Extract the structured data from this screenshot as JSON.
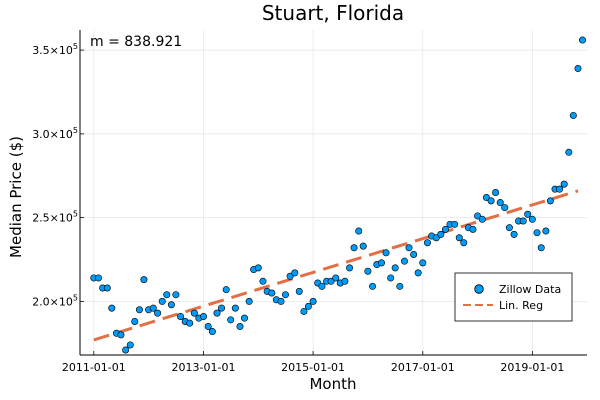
{
  "chart_data": {
    "type": "scatter",
    "title": "Stuart, Florida",
    "xlabel": "Month",
    "ylabel": "Median Price ($)",
    "annotation": "m = 838.921",
    "x_range": [
      "2010-10-01",
      "2019-12-31"
    ],
    "y_range": [
      168000,
      362000
    ],
    "x_ticks": [
      "2011-01-01",
      "2013-01-01",
      "2015-01-01",
      "2017-01-01",
      "2019-01-01"
    ],
    "y_ticks": [
      {
        "value": 200000,
        "mantissa": "2.0×10",
        "exp": "5"
      },
      {
        "value": 250000,
        "mantissa": "2.5×10",
        "exp": "5"
      },
      {
        "value": 300000,
        "mantissa": "3.0×10",
        "exp": "5"
      },
      {
        "value": 350000,
        "mantissa": "3.5×10",
        "exp": "5"
      }
    ],
    "grid": true,
    "legend_position": "bottom-right",
    "series": [
      {
        "name": "Zillow Data",
        "kind": "scatter",
        "color": "#009af9",
        "points": [
          [
            "2011-01-01",
            214000
          ],
          [
            "2011-02-01",
            214000
          ],
          [
            "2011-03-01",
            208000
          ],
          [
            "2011-04-01",
            208000
          ],
          [
            "2011-05-01",
            196000
          ],
          [
            "2011-06-01",
            181000
          ],
          [
            "2011-07-01",
            180000
          ],
          [
            "2011-08-01",
            171000
          ],
          [
            "2011-09-01",
            174000
          ],
          [
            "2011-10-01",
            188000
          ],
          [
            "2011-11-01",
            195000
          ],
          [
            "2011-12-01",
            213000
          ],
          [
            "2012-01-01",
            195000
          ],
          [
            "2012-02-01",
            196000
          ],
          [
            "2012-03-01",
            193000
          ],
          [
            "2012-04-01",
            200000
          ],
          [
            "2012-05-01",
            204000
          ],
          [
            "2012-06-01",
            198000
          ],
          [
            "2012-07-01",
            204000
          ],
          [
            "2012-08-01",
            191000
          ],
          [
            "2012-09-01",
            188000
          ],
          [
            "2012-10-01",
            187000
          ],
          [
            "2012-11-01",
            193000
          ],
          [
            "2012-12-01",
            190000
          ],
          [
            "2013-01-01",
            191000
          ],
          [
            "2013-02-01",
            185000
          ],
          [
            "2013-03-01",
            182000
          ],
          [
            "2013-04-01",
            193000
          ],
          [
            "2013-05-01",
            196000
          ],
          [
            "2013-06-01",
            207000
          ],
          [
            "2013-07-01",
            189000
          ],
          [
            "2013-08-01",
            196000
          ],
          [
            "2013-09-01",
            185000
          ],
          [
            "2013-10-01",
            190000
          ],
          [
            "2013-11-01",
            200000
          ],
          [
            "2013-12-01",
            219000
          ],
          [
            "2014-01-01",
            220000
          ],
          [
            "2014-02-01",
            212000
          ],
          [
            "2014-03-01",
            206000
          ],
          [
            "2014-04-01",
            205000
          ],
          [
            "2014-05-01",
            201000
          ],
          [
            "2014-06-01",
            200000
          ],
          [
            "2014-07-01",
            204000
          ],
          [
            "2014-08-01",
            215000
          ],
          [
            "2014-09-01",
            217000
          ],
          [
            "2014-10-01",
            206000
          ],
          [
            "2014-11-01",
            194000
          ],
          [
            "2014-12-01",
            197000
          ],
          [
            "2015-01-01",
            200000
          ],
          [
            "2015-02-01",
            211000
          ],
          [
            "2015-03-01",
            209000
          ],
          [
            "2015-04-01",
            212000
          ],
          [
            "2015-05-01",
            212000
          ],
          [
            "2015-06-01",
            214000
          ],
          [
            "2015-07-01",
            211000
          ],
          [
            "2015-08-01",
            212000
          ],
          [
            "2015-09-01",
            220000
          ],
          [
            "2015-10-01",
            232000
          ],
          [
            "2015-11-01",
            242000
          ],
          [
            "2015-12-01",
            233000
          ],
          [
            "2016-01-01",
            218000
          ],
          [
            "2016-02-01",
            209000
          ],
          [
            "2016-03-01",
            222000
          ],
          [
            "2016-04-01",
            223000
          ],
          [
            "2016-05-01",
            229000
          ],
          [
            "2016-06-01",
            214000
          ],
          [
            "2016-07-01",
            220000
          ],
          [
            "2016-08-01",
            209000
          ],
          [
            "2016-09-01",
            224000
          ],
          [
            "2016-10-01",
            232000
          ],
          [
            "2016-11-01",
            228000
          ],
          [
            "2016-12-01",
            217000
          ],
          [
            "2017-01-01",
            223000
          ],
          [
            "2017-02-01",
            235000
          ],
          [
            "2017-03-01",
            239000
          ],
          [
            "2017-04-01",
            238000
          ],
          [
            "2017-05-01",
            240000
          ],
          [
            "2017-06-01",
            243000
          ],
          [
            "2017-07-01",
            246000
          ],
          [
            "2017-08-01",
            246000
          ],
          [
            "2017-09-01",
            238000
          ],
          [
            "2017-10-01",
            235000
          ],
          [
            "2017-11-01",
            244000
          ],
          [
            "2017-12-01",
            243000
          ],
          [
            "2018-01-01",
            251000
          ],
          [
            "2018-02-01",
            249000
          ],
          [
            "2018-03-01",
            262000
          ],
          [
            "2018-04-01",
            260000
          ],
          [
            "2018-05-01",
            265000
          ],
          [
            "2018-06-01",
            259000
          ],
          [
            "2018-07-01",
            256000
          ],
          [
            "2018-08-01",
            244000
          ],
          [
            "2018-09-01",
            240000
          ],
          [
            "2018-10-01",
            248000
          ],
          [
            "2018-11-01",
            248000
          ],
          [
            "2018-12-01",
            252000
          ],
          [
            "2019-01-01",
            249000
          ],
          [
            "2019-02-01",
            241000
          ],
          [
            "2019-03-01",
            232000
          ],
          [
            "2019-04-01",
            242000
          ],
          [
            "2019-05-01",
            260000
          ],
          [
            "2019-06-01",
            267000
          ],
          [
            "2019-07-01",
            267000
          ],
          [
            "2019-08-01",
            270000
          ],
          [
            "2019-09-01",
            289000
          ],
          [
            "2019-10-01",
            311000
          ],
          [
            "2019-11-01",
            339000
          ],
          [
            "2019-12-01",
            356000
          ]
        ]
      },
      {
        "name": "Lin. Reg",
        "kind": "line",
        "style": "dashed",
        "color": "#e26f46",
        "points": [
          [
            "2011-01-01",
            177000
          ],
          [
            "2019-11-01",
            266000
          ]
        ]
      }
    ]
  }
}
